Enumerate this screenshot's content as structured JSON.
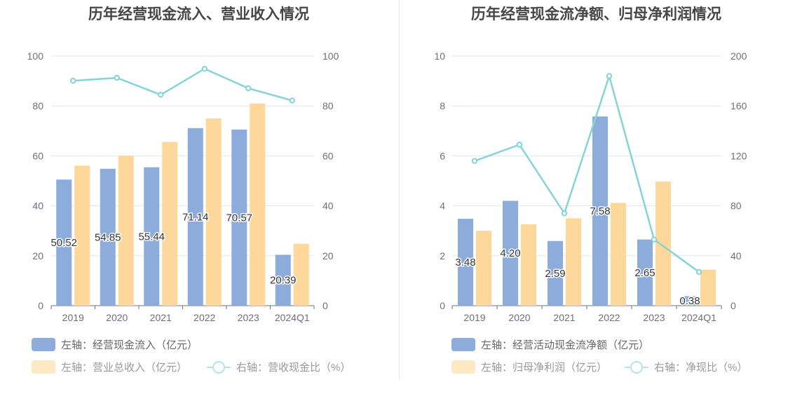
{
  "colors": {
    "primary_bar": "#8cacdc",
    "secondary_bar": "#fed89a",
    "line": "#86d3d9",
    "grid": "#e0e6f1",
    "axis": "#6e7079",
    "legend_primary": "#8cacdc",
    "legend_secondary": "#ffe9c4",
    "legend_line": "#b6e4e8"
  },
  "chart_data": [
    {
      "type": "bar",
      "title": "历年经营现金流入、营业收入情况",
      "categories": [
        "2019",
        "2020",
        "2021",
        "2022",
        "2023",
        "2024Q1"
      ],
      "y_left": {
        "min": 0,
        "max": 100,
        "ticks": [
          0,
          20,
          40,
          60,
          80,
          100
        ]
      },
      "y_right": {
        "min": 0,
        "max": 100,
        "ticks": [
          0,
          20,
          40,
          60,
          80,
          100
        ]
      },
      "series": [
        {
          "name": "左轴：经营现金流入（亿元）",
          "kind": "bar",
          "axis": "left",
          "values": [
            50.52,
            54.85,
            55.44,
            71.14,
            70.57,
            20.39
          ],
          "labels": [
            "50.52",
            "54.85",
            "55.44",
            "71.14",
            "70.57",
            "20.39"
          ]
        },
        {
          "name": "左轴：营业总收入（亿元）",
          "kind": "bar",
          "axis": "left",
          "values": [
            56.1,
            60.1,
            65.6,
            75.0,
            81.0,
            24.8
          ]
        },
        {
          "name": "右轴：营收现金比（%）",
          "kind": "line",
          "axis": "right",
          "values": [
            90.1,
            91.3,
            84.5,
            94.9,
            87.1,
            82.2
          ]
        }
      ],
      "legend_position": "bottom-left",
      "grid": true
    },
    {
      "type": "bar",
      "title": "历年经营现金流净额、归母净利润情况",
      "categories": [
        "2019",
        "2020",
        "2021",
        "2022",
        "2023",
        "2024Q1"
      ],
      "y_left": {
        "min": 0,
        "max": 10,
        "ticks": [
          0,
          2,
          4,
          6,
          8,
          10
        ]
      },
      "y_right": {
        "min": 0,
        "max": 200,
        "ticks": [
          0,
          40,
          80,
          120,
          160,
          200
        ]
      },
      "series": [
        {
          "name": "左轴：经营活动现金流净额（亿元）",
          "kind": "bar",
          "axis": "left",
          "values": [
            3.48,
            4.2,
            2.59,
            7.58,
            2.65,
            0.38
          ],
          "labels": [
            "3.48",
            "4.20",
            "2.59",
            "7.58",
            "2.65",
            "0.38"
          ]
        },
        {
          "name": "左轴：归母净利润（亿元）",
          "kind": "bar",
          "axis": "left",
          "values": [
            3.0,
            3.26,
            3.5,
            4.12,
            4.97,
            1.44
          ]
        },
        {
          "name": "右轴：净现比（%）",
          "kind": "line",
          "axis": "right",
          "values": [
            116,
            129,
            74,
            184,
            53,
            27
          ]
        }
      ],
      "legend_position": "bottom-left",
      "grid": true
    }
  ]
}
